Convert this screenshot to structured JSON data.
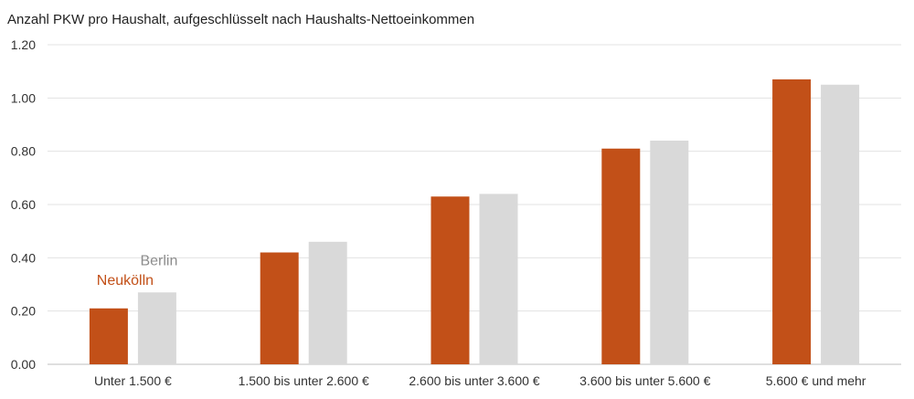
{
  "chart_data": {
    "type": "bar",
    "title": "Anzahl PKW pro Haushalt, aufgeschlüsselt nach Haushalts-Nettoeinkommen",
    "categories": [
      "Unter 1.500 €",
      "1.500 bis unter 2.600 €",
      "2.600 bis unter 3.600 €",
      "3.600 bis unter 5.600 €",
      "5.600 € und mehr"
    ],
    "series": [
      {
        "name": "Neukölln",
        "color": "#C25018",
        "values": [
          0.21,
          0.42,
          0.63,
          0.81,
          1.07
        ]
      },
      {
        "name": "Berlin",
        "color": "#D9D9D9",
        "label_color": "#8C8C8C",
        "values": [
          0.27,
          0.46,
          0.64,
          0.84,
          1.05
        ]
      }
    ],
    "yticks": [
      "0.00",
      "0.20",
      "0.40",
      "0.60",
      "0.80",
      "1.00",
      "1.20"
    ],
    "ylim": [
      0,
      1.2
    ],
    "grid": true,
    "legend": "inline labels above first category"
  }
}
